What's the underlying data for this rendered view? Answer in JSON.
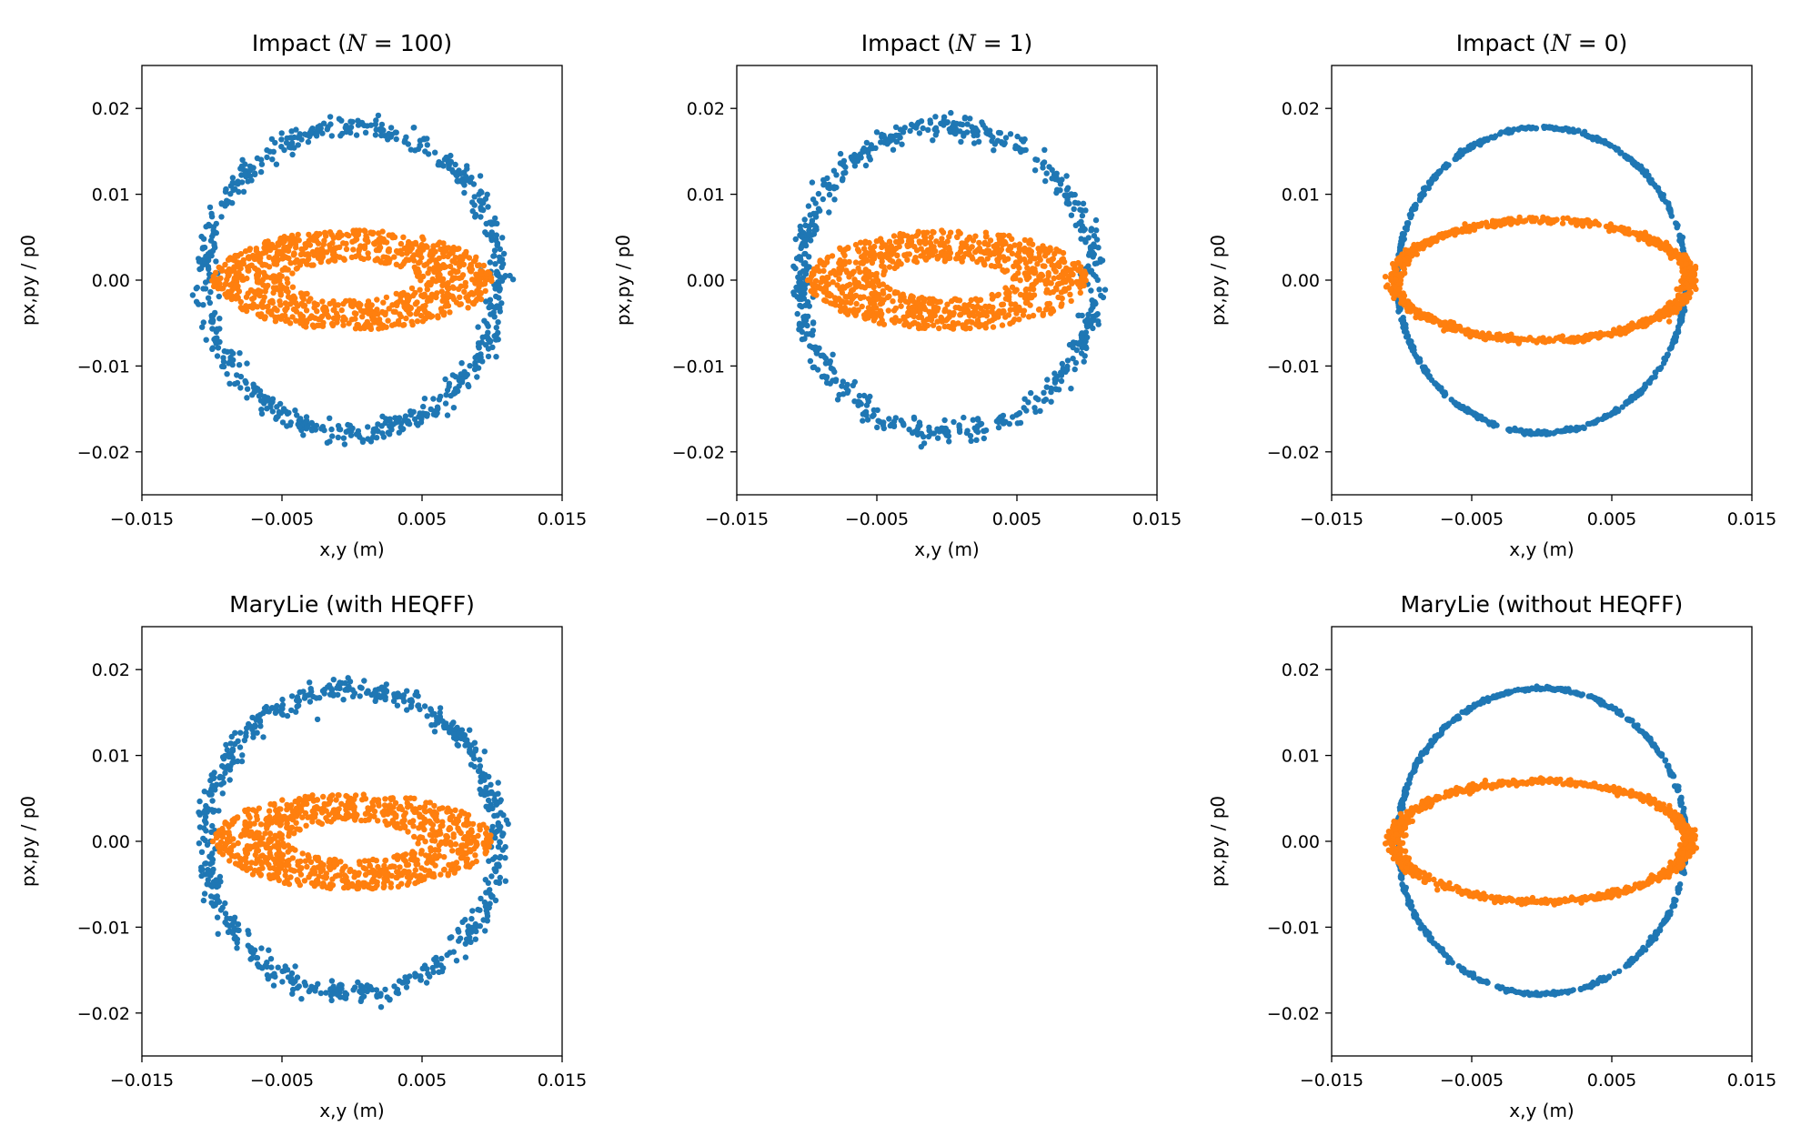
{
  "colors": {
    "series_1": "#1f77b4",
    "series_2": "#ff7f0e",
    "axes": "#000000",
    "background": "#ffffff"
  },
  "chart_data": [
    {
      "type": "scatter",
      "title": "Impact (N = 100)",
      "title_prefix": "Impact (",
      "title_italic": "N",
      "title_suffix": " = 100)",
      "xlabel": "x,y (m)",
      "ylabel": "px,py / p0",
      "xlim": [
        -0.015,
        0.015
      ],
      "ylim": [
        -0.025,
        0.025
      ],
      "xticks": [
        -0.015,
        -0.005,
        0.005,
        0.015
      ],
      "xtick_labels": [
        "−0.015",
        "−0.005",
        "0.005",
        "0.015"
      ],
      "yticks": [
        -0.02,
        -0.01,
        0.0,
        0.01,
        0.02
      ],
      "ytick_labels": [
        "−0.02",
        "−0.01",
        "0.00",
        "0.01",
        "0.02"
      ],
      "series": [
        {
          "color": "#1f77b4",
          "shape": "ring",
          "center": [
            0.0,
            0.0
          ],
          "semi_axes": [
            0.0105,
            0.0178
          ],
          "spread": 0.035,
          "count": 650
        },
        {
          "color": "#ff7f0e",
          "shape": "annulus",
          "center": [
            0.0,
            0.0
          ],
          "outer_semi_axes": [
            0.01,
            0.0058
          ],
          "inner_semi_axes": [
            0.0045,
            0.0022
          ],
          "count": 900
        }
      ]
    },
    {
      "type": "scatter",
      "title": "Impact (N = 1)",
      "title_prefix": "Impact (",
      "title_italic": "N",
      "title_suffix": " = 1)",
      "xlabel": "x,y (m)",
      "ylabel": "px,py / p0",
      "xlim": [
        -0.015,
        0.015
      ],
      "ylim": [
        -0.025,
        0.025
      ],
      "xticks": [
        -0.015,
        -0.005,
        0.005,
        0.015
      ],
      "xtick_labels": [
        "−0.015",
        "−0.005",
        "0.005",
        "0.015"
      ],
      "yticks": [
        -0.02,
        -0.01,
        0.0,
        0.01,
        0.02
      ],
      "ytick_labels": [
        "−0.02",
        "−0.01",
        "0.00",
        "0.01",
        "0.02"
      ],
      "series": [
        {
          "color": "#1f77b4",
          "shape": "ring",
          "center": [
            0.0,
            0.0
          ],
          "semi_axes": [
            0.0105,
            0.0178
          ],
          "spread": 0.035,
          "count": 650
        },
        {
          "color": "#ff7f0e",
          "shape": "annulus",
          "center": [
            0.0,
            0.0
          ],
          "outer_semi_axes": [
            0.01,
            0.0058
          ],
          "inner_semi_axes": [
            0.0045,
            0.0022
          ],
          "count": 900
        }
      ]
    },
    {
      "type": "scatter",
      "title": "Impact (N = 0)",
      "title_prefix": "Impact (",
      "title_italic": "N",
      "title_suffix": " = 0)",
      "xlabel": "x,y (m)",
      "ylabel": "px,py / p0",
      "xlim": [
        -0.015,
        0.015
      ],
      "ylim": [
        -0.025,
        0.025
      ],
      "xticks": [
        -0.015,
        -0.005,
        0.005,
        0.015
      ],
      "xtick_labels": [
        "−0.015",
        "−0.005",
        "0.005",
        "0.015"
      ],
      "yticks": [
        -0.02,
        -0.01,
        0.0,
        0.01,
        0.02
      ],
      "ytick_labels": [
        "−0.02",
        "−0.01",
        "0.00",
        "0.01",
        "0.02"
      ],
      "series": [
        {
          "color": "#1f77b4",
          "shape": "ring",
          "center": [
            0.0,
            0.0
          ],
          "semi_axes": [
            0.0103,
            0.0178
          ],
          "spread": 0.006,
          "count": 700
        },
        {
          "color": "#ff7f0e",
          "shape": "ring",
          "center": [
            0.0,
            0.0
          ],
          "semi_axes": [
            0.0105,
            0.007
          ],
          "spread": 0.025,
          "count": 900
        }
      ]
    },
    {
      "type": "scatter",
      "title": "MaryLie (with HEQFF)",
      "xlabel": "x,y (m)",
      "ylabel": "px,py / p0",
      "xlim": [
        -0.015,
        0.015
      ],
      "ylim": [
        -0.025,
        0.025
      ],
      "xticks": [
        -0.015,
        -0.005,
        0.005,
        0.015
      ],
      "xtick_labels": [
        "−0.015",
        "−0.005",
        "0.005",
        "0.015"
      ],
      "yticks": [
        -0.02,
        -0.01,
        0.0,
        0.01,
        0.02
      ],
      "ytick_labels": [
        "−0.02",
        "−0.01",
        "0.00",
        "0.01",
        "0.02"
      ],
      "series": [
        {
          "color": "#1f77b4",
          "shape": "ring",
          "center": [
            0.0,
            0.0
          ],
          "semi_axes": [
            0.0105,
            0.0178
          ],
          "spread": 0.035,
          "count": 650
        },
        {
          "color": "#ff7f0e",
          "shape": "annulus",
          "center": [
            0.0,
            0.0
          ],
          "outer_semi_axes": [
            0.01,
            0.0056
          ],
          "inner_semi_axes": [
            0.0045,
            0.0022
          ],
          "count": 900
        }
      ]
    },
    {
      "type": "scatter",
      "title": "MaryLie (without HEQFF)",
      "xlabel": "x,y (m)",
      "ylabel": "px,py / p0",
      "xlim": [
        -0.015,
        0.015
      ],
      "ylim": [
        -0.025,
        0.025
      ],
      "xticks": [
        -0.015,
        -0.005,
        0.005,
        0.015
      ],
      "xtick_labels": [
        "−0.015",
        "−0.005",
        "0.005",
        "0.015"
      ],
      "yticks": [
        -0.02,
        -0.01,
        0.0,
        0.01,
        0.02
      ],
      "ytick_labels": [
        "−0.02",
        "−0.01",
        "0.00",
        "0.01",
        "0.02"
      ],
      "series": [
        {
          "color": "#1f77b4",
          "shape": "ring",
          "center": [
            0.0,
            0.0
          ],
          "semi_axes": [
            0.0103,
            0.0178
          ],
          "spread": 0.006,
          "count": 700
        },
        {
          "color": "#ff7f0e",
          "shape": "ring",
          "center": [
            0.0,
            0.0
          ],
          "semi_axes": [
            0.0105,
            0.007
          ],
          "spread": 0.025,
          "count": 900
        }
      ]
    }
  ]
}
